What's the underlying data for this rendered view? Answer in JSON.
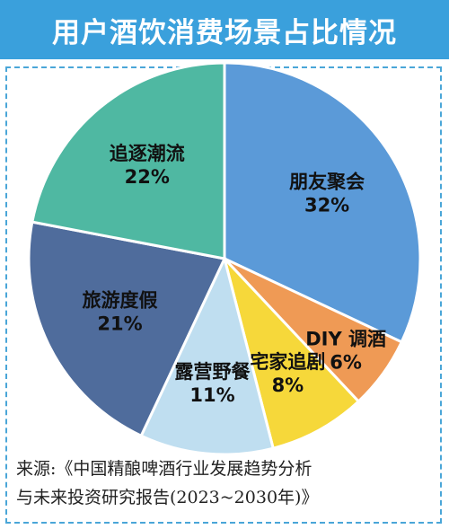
{
  "header": {
    "title": "用户酒饮消费场景占比情况"
  },
  "chart_data": {
    "type": "pie",
    "title": "用户酒饮消费场景占比情况",
    "start_angle_deg": 0,
    "direction": "clockwise",
    "slices": [
      {
        "label": "朋友聚会",
        "percent_text": "32%",
        "value": 32,
        "color": "#5b9ad8"
      },
      {
        "label": "DIY 调酒",
        "percent_text": "6%",
        "value": 6,
        "color": "#ef9a55"
      },
      {
        "label": "宅家追剧",
        "percent_text": "8%",
        "value": 8,
        "color": "#f6d83a"
      },
      {
        "label": "露营野餐",
        "percent_text": "11%",
        "value": 11,
        "color": "#bfdef0"
      },
      {
        "label": "旅游度假",
        "percent_text": "21%",
        "value": 21,
        "color": "#4f6c9c"
      },
      {
        "label": "追逐潮流",
        "percent_text": "22%",
        "value": 22,
        "color": "#4fb8a2"
      }
    ]
  },
  "source": {
    "line1": "来源:《中国精酿啤酒行业发展趋势分析",
    "line2": "与未来投资研究报告(2023~2030年)》"
  }
}
